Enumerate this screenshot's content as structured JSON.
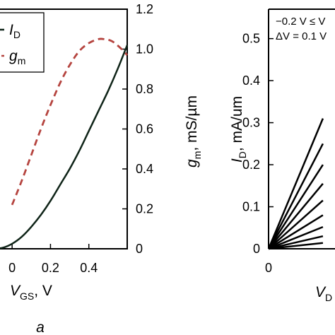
{
  "colors": {
    "id_curve": "#0f2418",
    "gm_curve": "#b5443f",
    "axis": "#000000"
  },
  "panel_label": "a",
  "chart_data": [
    {
      "type": "line",
      "panel": "left",
      "xlabel": {
        "main": "V",
        "sub": "GS",
        "unit": ", V"
      },
      "ylabel_right": {
        "main": "g",
        "sub": "m",
        "unit": ", mS/µm"
      },
      "xlim": [
        -0.1,
        0.6
      ],
      "ylim_right": [
        0,
        1.2
      ],
      "x_ticks": [
        "0",
        "0.2",
        "0.4"
      ],
      "y_ticks_right": [
        "0",
        "0.2",
        "0.4",
        "0.6",
        "0.8",
        "1.0",
        "1.2"
      ],
      "legend": {
        "position": "top-left",
        "entries": [
          {
            "label": "I",
            "sub": "D",
            "style": "solid",
            "color": "#0f2418"
          },
          {
            "label": "g",
            "sub": "m",
            "style": "dashed",
            "color": "#b5443f"
          }
        ]
      },
      "series": [
        {
          "name": "ID",
          "style": "solid",
          "x": [
            -0.1,
            -0.05,
            0.0,
            0.05,
            0.1,
            0.15,
            0.2,
            0.25,
            0.3,
            0.35,
            0.4,
            0.45,
            0.5,
            0.55,
            0.6
          ],
          "y": [
            0.0,
            0.005,
            0.025,
            0.06,
            0.11,
            0.17,
            0.24,
            0.32,
            0.4,
            0.49,
            0.59,
            0.69,
            0.79,
            0.9,
            1.02
          ]
        },
        {
          "name": "gm",
          "style": "dashed",
          "x": [
            0.0,
            0.05,
            0.1,
            0.15,
            0.2,
            0.25,
            0.3,
            0.35,
            0.4,
            0.45,
            0.48,
            0.52,
            0.56,
            0.6
          ],
          "y": [
            0.22,
            0.34,
            0.47,
            0.6,
            0.72,
            0.83,
            0.92,
            0.99,
            1.03,
            1.05,
            1.05,
            1.04,
            1.01,
            0.97
          ]
        }
      ]
    },
    {
      "type": "line",
      "panel": "right",
      "xlabel": {
        "main": "V",
        "sub": "D"
      },
      "ylabel": {
        "main": "I",
        "sub": "D",
        "unit": ", mA/um"
      },
      "xlim": [
        0,
        0.13
      ],
      "ylim": [
        0,
        0.57
      ],
      "x_ticks": [
        "0"
      ],
      "y_ticks": [
        "0",
        "0.1",
        "0.2",
        "0.3",
        "0.4",
        "0.5"
      ],
      "annotation": [
        "−0.2 V ≤ V",
        "ΔV = 0.1 V"
      ],
      "series": [
        {
          "x": [
            0,
            0.1
          ],
          "y": [
            0,
            0.31
          ]
        },
        {
          "x": [
            0,
            0.1
          ],
          "y": [
            0,
            0.25
          ]
        },
        {
          "x": [
            0,
            0.1
          ],
          "y": [
            0,
            0.2
          ]
        },
        {
          "x": [
            0,
            0.1
          ],
          "y": [
            0,
            0.155
          ]
        },
        {
          "x": [
            0,
            0.1
          ],
          "y": [
            0,
            0.115
          ]
        },
        {
          "x": [
            0,
            0.1
          ],
          "y": [
            0,
            0.08
          ]
        },
        {
          "x": [
            0,
            0.1
          ],
          "y": [
            0,
            0.052
          ]
        },
        {
          "x": [
            0,
            0.1
          ],
          "y": [
            0,
            0.03
          ]
        },
        {
          "x": [
            0,
            0.1
          ],
          "y": [
            0,
            0.014
          ]
        }
      ]
    }
  ]
}
